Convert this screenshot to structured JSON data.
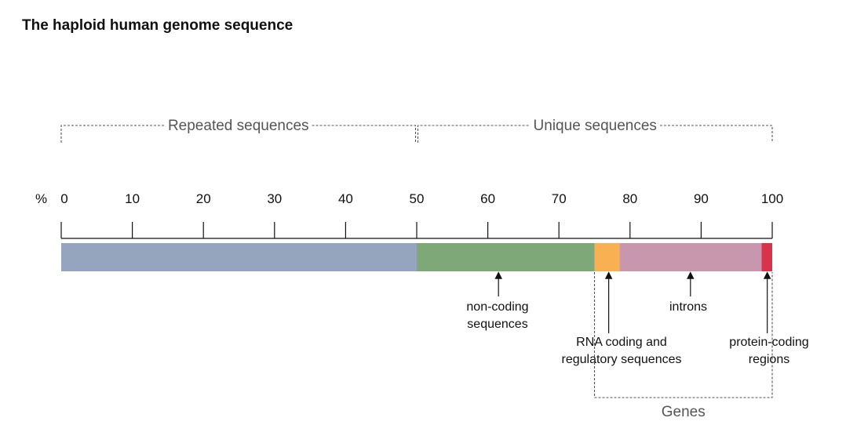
{
  "title": "The haploid human genome sequence",
  "axis": {
    "unit": "%",
    "min": 0,
    "max": 100,
    "ticks": [
      0,
      10,
      20,
      30,
      40,
      50,
      60,
      70,
      80,
      90,
      100
    ]
  },
  "segments": [
    {
      "id": "repeated",
      "start": 0,
      "end": 50,
      "color": "#94a5bd"
    },
    {
      "id": "non-coding",
      "start": 50,
      "end": 75,
      "color": "#7fa878"
    },
    {
      "id": "rna-coding-regulatory",
      "start": 75,
      "end": 78.5,
      "color": "#f8b052"
    },
    {
      "id": "introns",
      "start": 78.5,
      "end": 98.5,
      "color": "#c897ae"
    },
    {
      "id": "protein-coding",
      "start": 98.5,
      "end": 100,
      "color": "#d9334b"
    }
  ],
  "groups": {
    "repeated": {
      "label": "Repeated sequences",
      "start": 0,
      "end": 50
    },
    "unique": {
      "label": "Unique sequences",
      "start": 50,
      "end": 100
    },
    "genes": {
      "label": "Genes",
      "start": 75,
      "end": 100
    }
  },
  "annotations": {
    "non_coding": {
      "lines": [
        "non-coding",
        "sequences"
      ],
      "at": 61.5
    },
    "rna_coding": {
      "lines": [
        "RNA coding and",
        "regulatory sequences"
      ],
      "at": 77
    },
    "introns": {
      "lines": [
        "introns"
      ],
      "at": 88.5
    },
    "protein_coding": {
      "lines": [
        "protein-coding",
        "regions"
      ],
      "at": 99.3
    }
  }
}
